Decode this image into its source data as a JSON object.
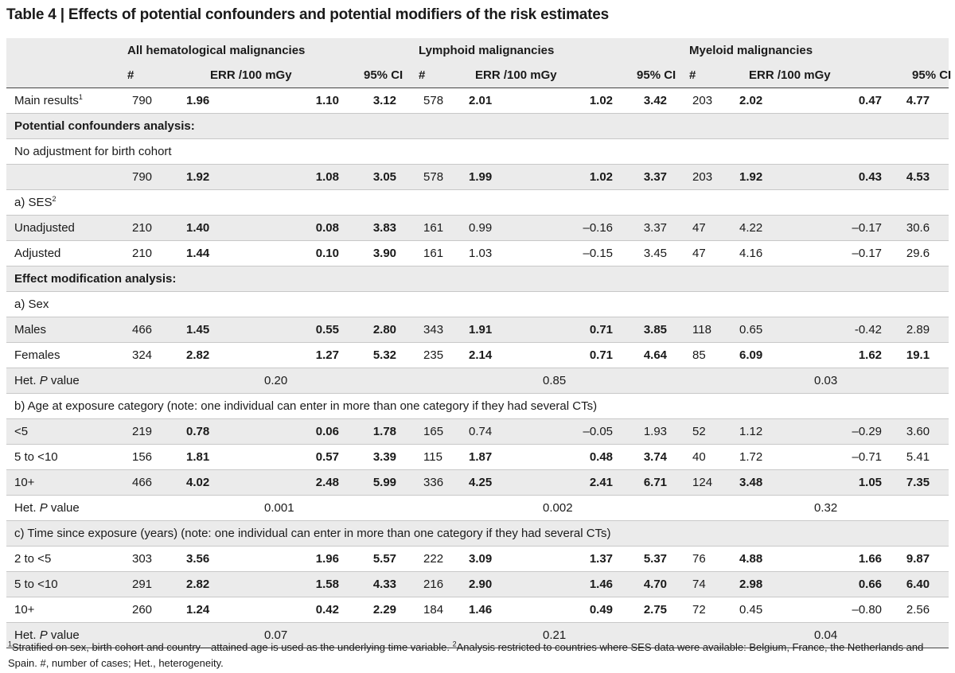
{
  "title": "Table 4 | Effects of potential confounders and potential modifiers of the risk estimates",
  "groups": [
    "All hematological malignancies",
    "Lymphoid malignancies",
    "Myeloid malignancies"
  ],
  "subheaders": [
    "#",
    "ERR /100 mGy",
    "95% CI"
  ],
  "rows": [
    {
      "type": "data",
      "shade": false,
      "label": "Main results",
      "sup": "1",
      "cells": [
        {
          "v": "790",
          "b": false
        },
        {
          "v": "1.96",
          "b": true
        },
        {
          "v": "1.10",
          "b": true
        },
        {
          "v": "3.12",
          "b": true
        },
        {
          "v": "578",
          "b": false
        },
        {
          "v": "2.01",
          "b": true
        },
        {
          "v": "1.02",
          "b": true
        },
        {
          "v": "3.42",
          "b": true
        },
        {
          "v": "203",
          "b": false
        },
        {
          "v": "2.02",
          "b": true
        },
        {
          "v": "0.47",
          "b": true
        },
        {
          "v": "4.77",
          "b": true
        }
      ]
    },
    {
      "type": "section",
      "shade": true,
      "label": "Potential confounders analysis:"
    },
    {
      "type": "sub",
      "shade": false,
      "label": "No adjustment for birth cohort"
    },
    {
      "type": "data",
      "shade": true,
      "label": "",
      "sup": "",
      "cells": [
        {
          "v": "790",
          "b": false
        },
        {
          "v": "1.92",
          "b": true
        },
        {
          "v": "1.08",
          "b": true
        },
        {
          "v": "3.05",
          "b": true
        },
        {
          "v": "578",
          "b": false
        },
        {
          "v": "1.99",
          "b": true
        },
        {
          "v": "1.02",
          "b": true
        },
        {
          "v": "3.37",
          "b": true
        },
        {
          "v": "203",
          "b": false
        },
        {
          "v": "1.92",
          "b": true
        },
        {
          "v": "0.43",
          "b": true
        },
        {
          "v": "4.53",
          "b": true
        }
      ]
    },
    {
      "type": "sub",
      "shade": false,
      "label": "a) SES",
      "sup": "2"
    },
    {
      "type": "data",
      "shade": true,
      "label": "Unadjusted",
      "sup": "",
      "cells": [
        {
          "v": "210",
          "b": false
        },
        {
          "v": "1.40",
          "b": true
        },
        {
          "v": "0.08",
          "b": true
        },
        {
          "v": "3.83",
          "b": true
        },
        {
          "v": "161",
          "b": false
        },
        {
          "v": "0.99",
          "b": false
        },
        {
          "v": "–0.16",
          "b": false
        },
        {
          "v": "3.37",
          "b": false
        },
        {
          "v": "47",
          "b": false
        },
        {
          "v": "4.22",
          "b": false
        },
        {
          "v": "–0.17",
          "b": false
        },
        {
          "v": "30.6",
          "b": false
        }
      ]
    },
    {
      "type": "data",
      "shade": false,
      "label": "Adjusted",
      "sup": "",
      "cells": [
        {
          "v": "210",
          "b": false
        },
        {
          "v": "1.44",
          "b": true
        },
        {
          "v": "0.10",
          "b": true
        },
        {
          "v": "3.90",
          "b": true
        },
        {
          "v": "161",
          "b": false
        },
        {
          "v": "1.03",
          "b": false
        },
        {
          "v": "–0.15",
          "b": false
        },
        {
          "v": "3.45",
          "b": false
        },
        {
          "v": "47",
          "b": false
        },
        {
          "v": "4.16",
          "b": false
        },
        {
          "v": "–0.17",
          "b": false
        },
        {
          "v": "29.6",
          "b": false
        }
      ]
    },
    {
      "type": "section",
      "shade": true,
      "label": "Effect modification analysis:"
    },
    {
      "type": "sub",
      "shade": false,
      "label": "a) Sex"
    },
    {
      "type": "data",
      "shade": true,
      "label": "Males",
      "sup": "",
      "cells": [
        {
          "v": "466",
          "b": false
        },
        {
          "v": "1.45",
          "b": true
        },
        {
          "v": "0.55",
          "b": true
        },
        {
          "v": "2.80",
          "b": true
        },
        {
          "v": "343",
          "b": false
        },
        {
          "v": "1.91",
          "b": true
        },
        {
          "v": "0.71",
          "b": true
        },
        {
          "v": "3.85",
          "b": true
        },
        {
          "v": "118",
          "b": false
        },
        {
          "v": "0.65",
          "b": false
        },
        {
          "v": "-0.42",
          "b": false
        },
        {
          "v": "2.89",
          "b": false
        }
      ]
    },
    {
      "type": "data",
      "shade": false,
      "label": "Females",
      "sup": "",
      "cells": [
        {
          "v": "324",
          "b": false
        },
        {
          "v": "2.82",
          "b": true
        },
        {
          "v": "1.27",
          "b": true
        },
        {
          "v": "5.32",
          "b": true
        },
        {
          "v": "235",
          "b": false
        },
        {
          "v": "2.14",
          "b": true
        },
        {
          "v": "0.71",
          "b": true
        },
        {
          "v": "4.64",
          "b": true
        },
        {
          "v": "85",
          "b": false
        },
        {
          "v": "6.09",
          "b": true
        },
        {
          "v": "1.62",
          "b": true
        },
        {
          "v": "19.1",
          "b": true
        }
      ]
    },
    {
      "type": "pval",
      "shade": true,
      "label": "Het. ",
      "label_i": "P",
      "label_end": " value",
      "pvals": [
        "0.20",
        "0.85",
        "0.03"
      ]
    },
    {
      "type": "sub",
      "shade": false,
      "label": "b) Age at exposure category (note: one individual can enter in more than one category if they had several CTs)"
    },
    {
      "type": "data",
      "shade": true,
      "label": "<5",
      "sup": "",
      "cells": [
        {
          "v": "219",
          "b": false
        },
        {
          "v": "0.78",
          "b": true
        },
        {
          "v": "0.06",
          "b": true
        },
        {
          "v": "1.78",
          "b": true
        },
        {
          "v": "165",
          "b": false
        },
        {
          "v": "0.74",
          "b": false
        },
        {
          "v": "–0.05",
          "b": false
        },
        {
          "v": "1.93",
          "b": false
        },
        {
          "v": "52",
          "b": false
        },
        {
          "v": "1.12",
          "b": false
        },
        {
          "v": "–0.29",
          "b": false
        },
        {
          "v": "3.60",
          "b": false
        }
      ]
    },
    {
      "type": "data",
      "shade": false,
      "label": "5 to <10",
      "sup": "",
      "cells": [
        {
          "v": "156",
          "b": false
        },
        {
          "v": "1.81",
          "b": true
        },
        {
          "v": "0.57",
          "b": true
        },
        {
          "v": "3.39",
          "b": true
        },
        {
          "v": "115",
          "b": false
        },
        {
          "v": "1.87",
          "b": true
        },
        {
          "v": "0.48",
          "b": true
        },
        {
          "v": "3.74",
          "b": true
        },
        {
          "v": "40",
          "b": false
        },
        {
          "v": "1.72",
          "b": false
        },
        {
          "v": "–0.71",
          "b": false
        },
        {
          "v": "5.41",
          "b": false
        }
      ]
    },
    {
      "type": "data",
      "shade": true,
      "label": "10+",
      "sup": "",
      "cells": [
        {
          "v": "466",
          "b": false
        },
        {
          "v": "4.02",
          "b": true
        },
        {
          "v": "2.48",
          "b": true
        },
        {
          "v": "5.99",
          "b": true
        },
        {
          "v": "336",
          "b": false
        },
        {
          "v": "4.25",
          "b": true
        },
        {
          "v": "2.41",
          "b": true
        },
        {
          "v": "6.71",
          "b": true
        },
        {
          "v": "124",
          "b": false
        },
        {
          "v": "3.48",
          "b": true
        },
        {
          "v": "1.05",
          "b": true
        },
        {
          "v": "7.35",
          "b": true
        }
      ]
    },
    {
      "type": "pval",
      "shade": false,
      "label": "Het. ",
      "label_i": "P",
      "label_end": " value",
      "pvals": [
        "0.001",
        "0.002",
        "0.32"
      ]
    },
    {
      "type": "sub",
      "shade": true,
      "label": "c) Time since exposure (years) (note: one individual can enter in more than one category if they had several CTs)"
    },
    {
      "type": "data",
      "shade": false,
      "label": "2 to <5",
      "sup": "",
      "cells": [
        {
          "v": "303",
          "b": false
        },
        {
          "v": "3.56",
          "b": true
        },
        {
          "v": "1.96",
          "b": true
        },
        {
          "v": "5.57",
          "b": true
        },
        {
          "v": "222",
          "b": false
        },
        {
          "v": "3.09",
          "b": true
        },
        {
          "v": "1.37",
          "b": true
        },
        {
          "v": "5.37",
          "b": true
        },
        {
          "v": "76",
          "b": false
        },
        {
          "v": "4.88",
          "b": true
        },
        {
          "v": "1.66",
          "b": true
        },
        {
          "v": "9.87",
          "b": true
        }
      ]
    },
    {
      "type": "data",
      "shade": true,
      "label": "5 to <10",
      "sup": "",
      "cells": [
        {
          "v": "291",
          "b": false
        },
        {
          "v": "2.82",
          "b": true
        },
        {
          "v": "1.58",
          "b": true
        },
        {
          "v": "4.33",
          "b": true
        },
        {
          "v": "216",
          "b": false
        },
        {
          "v": "2.90",
          "b": true
        },
        {
          "v": "1.46",
          "b": true
        },
        {
          "v": "4.70",
          "b": true
        },
        {
          "v": "74",
          "b": false
        },
        {
          "v": "2.98",
          "b": true
        },
        {
          "v": "0.66",
          "b": true
        },
        {
          "v": "6.40",
          "b": true
        }
      ]
    },
    {
      "type": "data",
      "shade": false,
      "label": "10+",
      "sup": "",
      "cells": [
        {
          "v": "260",
          "b": false
        },
        {
          "v": "1.24",
          "b": true
        },
        {
          "v": "0.42",
          "b": true
        },
        {
          "v": "2.29",
          "b": true
        },
        {
          "v": "184",
          "b": false
        },
        {
          "v": "1.46",
          "b": true
        },
        {
          "v": "0.49",
          "b": true
        },
        {
          "v": "2.75",
          "b": true
        },
        {
          "v": "72",
          "b": false
        },
        {
          "v": "0.45",
          "b": false
        },
        {
          "v": "–0.80",
          "b": false
        },
        {
          "v": "2.56",
          "b": false
        }
      ]
    },
    {
      "type": "pval",
      "shade": true,
      "label": "Het. ",
      "label_i": "P",
      "label_end": " value",
      "pvals": [
        "0.07",
        "0.21",
        "0.04"
      ]
    }
  ],
  "footnote": {
    "sup1": "1",
    "text1": "Stratified on sex, birth cohort and country—attained age is used as the underlying time variable. ",
    "sup2": "2",
    "text2": "Analysis restricted to countries where SES data were available: Belgium, France, the Netherlands and Spain. #, number of cases; Het., heterogeneity."
  }
}
